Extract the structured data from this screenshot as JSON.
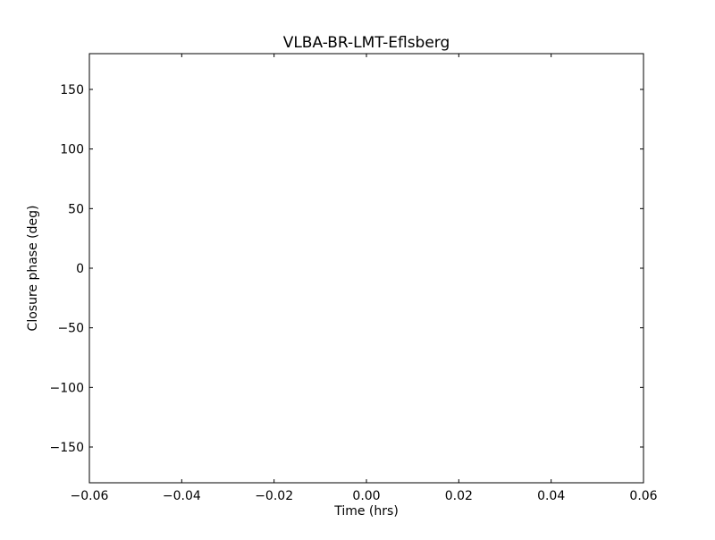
{
  "chart_data": {
    "type": "scatter",
    "title": "VLBA-BR-LMT-Eflsberg",
    "xlabel": "Time (hrs)",
    "ylabel": "Closure phase (deg)",
    "xlim": [
      -0.06,
      0.06
    ],
    "ylim": [
      -180,
      180
    ],
    "xticks": [
      -0.06,
      -0.04,
      -0.02,
      0.0,
      0.02,
      0.04,
      0.06
    ],
    "xtick_labels": [
      "−0.06",
      "−0.04",
      "−0.02",
      "0.00",
      "0.02",
      "0.04",
      "0.06"
    ],
    "yticks": [
      -150,
      -100,
      -50,
      0,
      50,
      100,
      150
    ],
    "ytick_labels": [
      "−150",
      "−100",
      "−50",
      "0",
      "50",
      "100",
      "150"
    ],
    "grid": false,
    "series": []
  }
}
